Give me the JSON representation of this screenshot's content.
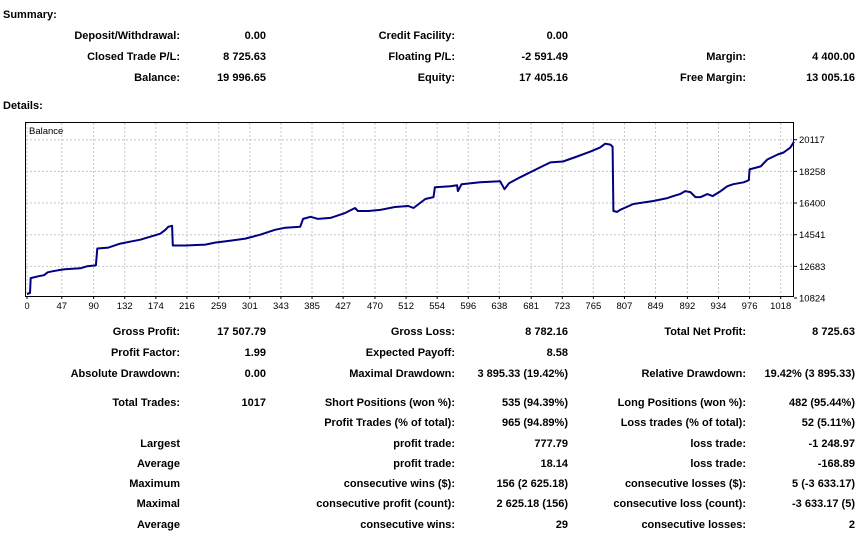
{
  "summary": {
    "heading": "Summary:",
    "rows": [
      [
        "Deposit/Withdrawal:",
        "0.00",
        "Credit Facility:",
        "0.00",
        "",
        ""
      ],
      [
        "Closed Trade P/L:",
        "8 725.63",
        "Floating P/L:",
        "-2 591.49",
        "Margin:",
        "4 400.00"
      ],
      [
        "Balance:",
        "19 996.65",
        "Equity:",
        "17 405.16",
        "Free Margin:",
        "13 005.16"
      ]
    ]
  },
  "details": {
    "heading": "Details:",
    "stats1": [
      [
        "Gross Profit:",
        "17 507.79",
        "Gross Loss:",
        "8 782.16",
        "Total Net Profit:",
        "8 725.63"
      ],
      [
        "Profit Factor:",
        "1.99",
        "Expected Payoff:",
        "8.58",
        "",
        ""
      ],
      [
        "Absolute Drawdown:",
        "0.00",
        "Maximal Drawdown:",
        "3 895.33 (19.42%)",
        "Relative Drawdown:",
        "19.42% (3 895.33)"
      ]
    ],
    "stats2": [
      [
        "Total Trades:",
        "1017",
        "Short Positions (won %):",
        "535 (94.39%)",
        "Long Positions (won %):",
        "482 (95.44%)"
      ],
      [
        "",
        "",
        "Profit Trades (% of total):",
        "965 (94.89%)",
        "Loss trades (% of total):",
        "52 (5.11%)"
      ],
      [
        "Largest",
        "",
        "profit trade:",
        "777.79",
        "loss trade:",
        "-1 248.97"
      ],
      [
        "Average",
        "",
        "profit trade:",
        "18.14",
        "loss trade:",
        "-168.89"
      ],
      [
        "Maximum",
        "",
        "consecutive wins ($):",
        "156 (2 625.18)",
        "consecutive losses ($):",
        "5 (-3 633.17)"
      ],
      [
        "Maximal",
        "",
        "consecutive profit (count):",
        "2 625.18 (156)",
        "consecutive loss (count):",
        "-3 633.17 (5)"
      ],
      [
        "Average",
        "",
        "consecutive wins:",
        "29",
        "consecutive losses:",
        "2"
      ]
    ]
  },
  "chart_data": {
    "type": "line",
    "title": "Balance",
    "xlabel": "",
    "ylabel": "",
    "x_ticks": [
      0,
      47,
      90,
      132,
      174,
      216,
      259,
      301,
      343,
      385,
      427,
      470,
      512,
      554,
      596,
      638,
      681,
      723,
      765,
      807,
      849,
      892,
      934,
      976,
      1018
    ],
    "y_ticks": [
      20117,
      18258,
      16400,
      14541,
      12683,
      10824
    ],
    "xlim": [
      0,
      1036
    ],
    "ylim": [
      10824,
      21158
    ],
    "grid": true,
    "legend_position": "none",
    "y_axis_side": "right",
    "line_color": "#000080",
    "grid_color": "#c6c6c6",
    "series": [
      {
        "name": "Balance",
        "points": [
          [
            0,
            11056
          ],
          [
            4,
            11115
          ],
          [
            5,
            11990
          ],
          [
            15,
            12100
          ],
          [
            23,
            12160
          ],
          [
            28,
            12335
          ],
          [
            35,
            12395
          ],
          [
            42,
            12450
          ],
          [
            51,
            12510
          ],
          [
            72,
            12565
          ],
          [
            81,
            12683
          ],
          [
            93,
            12740
          ],
          [
            95,
            13730
          ],
          [
            110,
            13785
          ],
          [
            126,
            14020
          ],
          [
            153,
            14250
          ],
          [
            180,
            14600
          ],
          [
            187,
            14830
          ],
          [
            191,
            15010
          ],
          [
            196,
            15065
          ],
          [
            197,
            13905
          ],
          [
            214,
            13905
          ],
          [
            241,
            13960
          ],
          [
            254,
            14075
          ],
          [
            274,
            14190
          ],
          [
            295,
            14310
          ],
          [
            315,
            14540
          ],
          [
            335,
            14830
          ],
          [
            349,
            14950
          ],
          [
            369,
            15010
          ],
          [
            373,
            15470
          ],
          [
            383,
            15590
          ],
          [
            393,
            15470
          ],
          [
            410,
            15530
          ],
          [
            430,
            15820
          ],
          [
            443,
            16110
          ],
          [
            447,
            15935
          ],
          [
            461,
            15935
          ],
          [
            477,
            15995
          ],
          [
            497,
            16170
          ],
          [
            515,
            16225
          ],
          [
            522,
            16110
          ],
          [
            538,
            16635
          ],
          [
            549,
            16750
          ],
          [
            551,
            17330
          ],
          [
            572,
            17390
          ],
          [
            581,
            17445
          ],
          [
            582,
            17100
          ],
          [
            587,
            17505
          ],
          [
            612,
            17620
          ],
          [
            639,
            17680
          ],
          [
            645,
            17215
          ],
          [
            651,
            17565
          ],
          [
            666,
            17910
          ],
          [
            693,
            18495
          ],
          [
            707,
            18785
          ],
          [
            724,
            18840
          ],
          [
            743,
            19130
          ],
          [
            761,
            19420
          ],
          [
            774,
            19655
          ],
          [
            781,
            19885
          ],
          [
            788,
            19830
          ],
          [
            791,
            19710
          ],
          [
            792,
            15935
          ],
          [
            797,
            15880
          ],
          [
            801,
            15995
          ],
          [
            819,
            16345
          ],
          [
            846,
            16520
          ],
          [
            865,
            16690
          ],
          [
            873,
            16810
          ],
          [
            882,
            16925
          ],
          [
            889,
            17100
          ],
          [
            896,
            17040
          ],
          [
            903,
            16750
          ],
          [
            910,
            16750
          ],
          [
            919,
            16925
          ],
          [
            926,
            16810
          ],
          [
            937,
            17100
          ],
          [
            946,
            17390
          ],
          [
            954,
            17505
          ],
          [
            968,
            17620
          ],
          [
            975,
            17740
          ],
          [
            976,
            18375
          ],
          [
            991,
            18550
          ],
          [
            1000,
            18955
          ],
          [
            1014,
            19250
          ],
          [
            1022,
            19365
          ],
          [
            1031,
            19655
          ],
          [
            1036,
            19997
          ]
        ]
      }
    ]
  },
  "colors": {
    "accent_line": "#000080",
    "grid": "#c6c6c6",
    "text": "#000000"
  }
}
